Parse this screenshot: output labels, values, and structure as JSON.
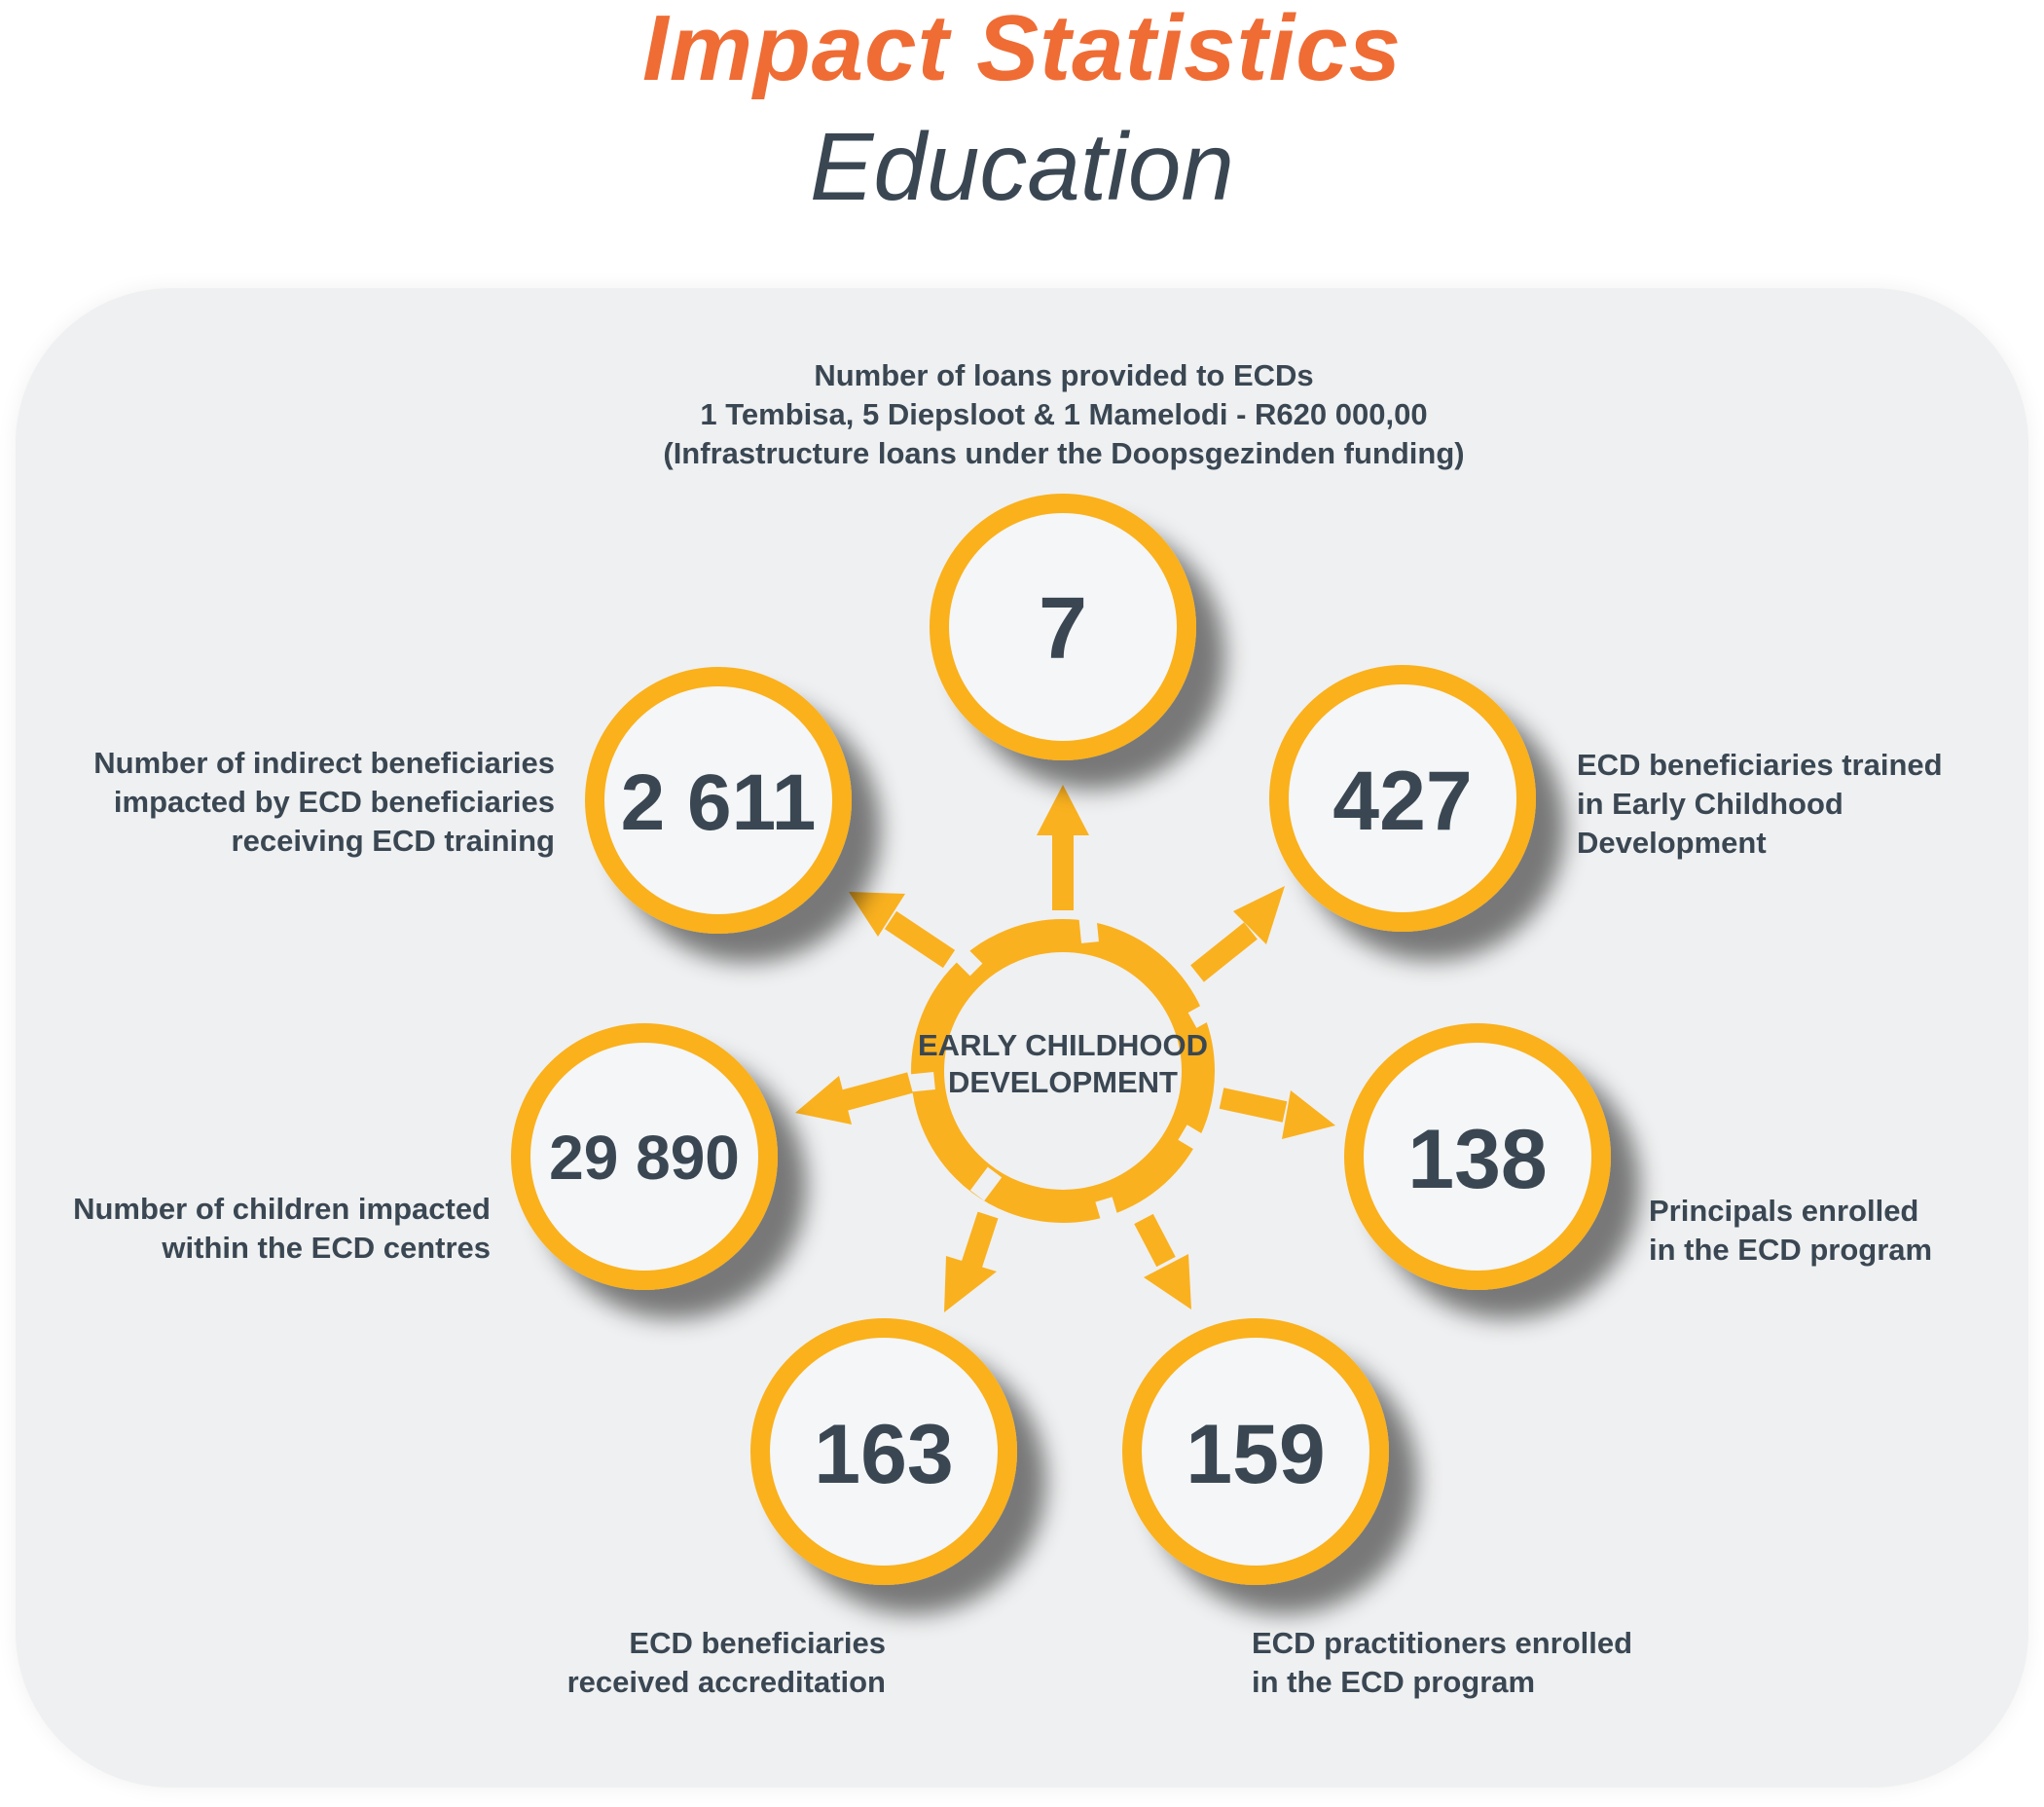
{
  "header": {
    "title": "Impact Statistics",
    "subtitle": "Education"
  },
  "colors": {
    "accent_orange": "#ef6c35",
    "ring_yellow": "#fab11f",
    "text_dark": "#3a4753",
    "panel_bg": "#eff0f1",
    "circle_fill": "#f4f6f7"
  },
  "center": {
    "line1": "EARLY CHILDHOOD",
    "line2": "DEVELOPMENT"
  },
  "stats": {
    "loans": {
      "value": "7",
      "label_lines": [
        "Number of loans provided to ECDs",
        "1 Tembisa, 5 Diepsloot & 1 Mamelodi - R620 000,00",
        "(Infrastructure loans under the Doopsgezinden funding)"
      ]
    },
    "trained": {
      "value": "427",
      "label_lines": [
        "ECD beneficiaries trained",
        "in Early Childhood",
        "Development"
      ]
    },
    "principals": {
      "value": "138",
      "label_lines": [
        "Principals enrolled",
        "in the ECD program"
      ]
    },
    "practitioners": {
      "value": "159",
      "label_lines": [
        "ECD practitioners enrolled",
        "in the ECD program"
      ]
    },
    "accreditation": {
      "value": "163",
      "label_lines": [
        "ECD beneficiaries",
        "received accreditation"
      ]
    },
    "children": {
      "value": "29 890",
      "label_lines": [
        "Number of children impacted",
        "within the ECD centres"
      ]
    },
    "indirect": {
      "value": "2 611",
      "label_lines": [
        "Number of indirect beneficiaries",
        "impacted by ECD beneficiaries",
        "receiving ECD training"
      ]
    }
  }
}
